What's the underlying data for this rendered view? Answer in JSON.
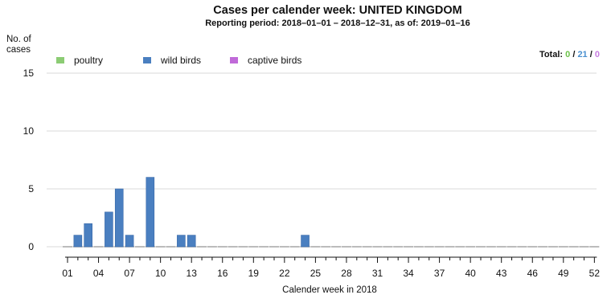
{
  "chart_data": {
    "type": "bar",
    "title": "Cases per calender week: UNITED KINGDOM",
    "subtitle": "Reporting period: 2018–01–01 – 2018–12–31, as of: 2019–01–16",
    "ylabel_line1": "No. of",
    "ylabel_line2": "cases",
    "xlabel": "Calender week in 2018",
    "ylim": [
      0,
      15
    ],
    "yticks": [
      0,
      5,
      10,
      15
    ],
    "grid": "horizontal",
    "legend_position": "top-left",
    "xtick_labels": [
      "01",
      "04",
      "07",
      "10",
      "13",
      "16",
      "19",
      "22",
      "25",
      "28",
      "31",
      "34",
      "37",
      "40",
      "43",
      "46",
      "49",
      "52"
    ],
    "weeks": [
      1,
      2,
      3,
      4,
      5,
      6,
      7,
      8,
      9,
      10,
      11,
      12,
      13,
      14,
      15,
      16,
      17,
      18,
      19,
      20,
      21,
      22,
      23,
      24,
      25,
      26,
      27,
      28,
      29,
      30,
      31,
      32,
      33,
      34,
      35,
      36,
      37,
      38,
      39,
      40,
      41,
      42,
      43,
      44,
      45,
      46,
      47,
      48,
      49,
      50,
      51,
      52
    ],
    "series": [
      {
        "name": "poultry",
        "color": "#8ccc74",
        "values": [
          0,
          0,
          0,
          0,
          0,
          0,
          0,
          0,
          0,
          0,
          0,
          0,
          0,
          0,
          0,
          0,
          0,
          0,
          0,
          0,
          0,
          0,
          0,
          0,
          0,
          0,
          0,
          0,
          0,
          0,
          0,
          0,
          0,
          0,
          0,
          0,
          0,
          0,
          0,
          0,
          0,
          0,
          0,
          0,
          0,
          0,
          0,
          0,
          0,
          0,
          0,
          0
        ]
      },
      {
        "name": "wild birds",
        "color": "#4a7fc0",
        "values": [
          0,
          1,
          2,
          0,
          3,
          5,
          1,
          0,
          6,
          0,
          0,
          1,
          1,
          0,
          0,
          0,
          0,
          0,
          0,
          0,
          0,
          0,
          0,
          1,
          0,
          0,
          0,
          0,
          0,
          0,
          0,
          0,
          0,
          0,
          0,
          0,
          0,
          0,
          0,
          0,
          0,
          0,
          0,
          0,
          0,
          0,
          0,
          0,
          0,
          0,
          0,
          0
        ]
      },
      {
        "name": "captive birds",
        "color": "#c06ad8",
        "values": [
          0,
          0,
          0,
          0,
          0,
          0,
          0,
          0,
          0,
          0,
          0,
          0,
          0,
          0,
          0,
          0,
          0,
          0,
          0,
          0,
          0,
          0,
          0,
          0,
          0,
          0,
          0,
          0,
          0,
          0,
          0,
          0,
          0,
          0,
          0,
          0,
          0,
          0,
          0,
          0,
          0,
          0,
          0,
          0,
          0,
          0,
          0,
          0,
          0,
          0,
          0,
          0
        ]
      }
    ],
    "total": {
      "label": "Total:",
      "poultry": "0",
      "wild_birds": "21",
      "captive_birds": "0",
      "sep": "/"
    }
  }
}
